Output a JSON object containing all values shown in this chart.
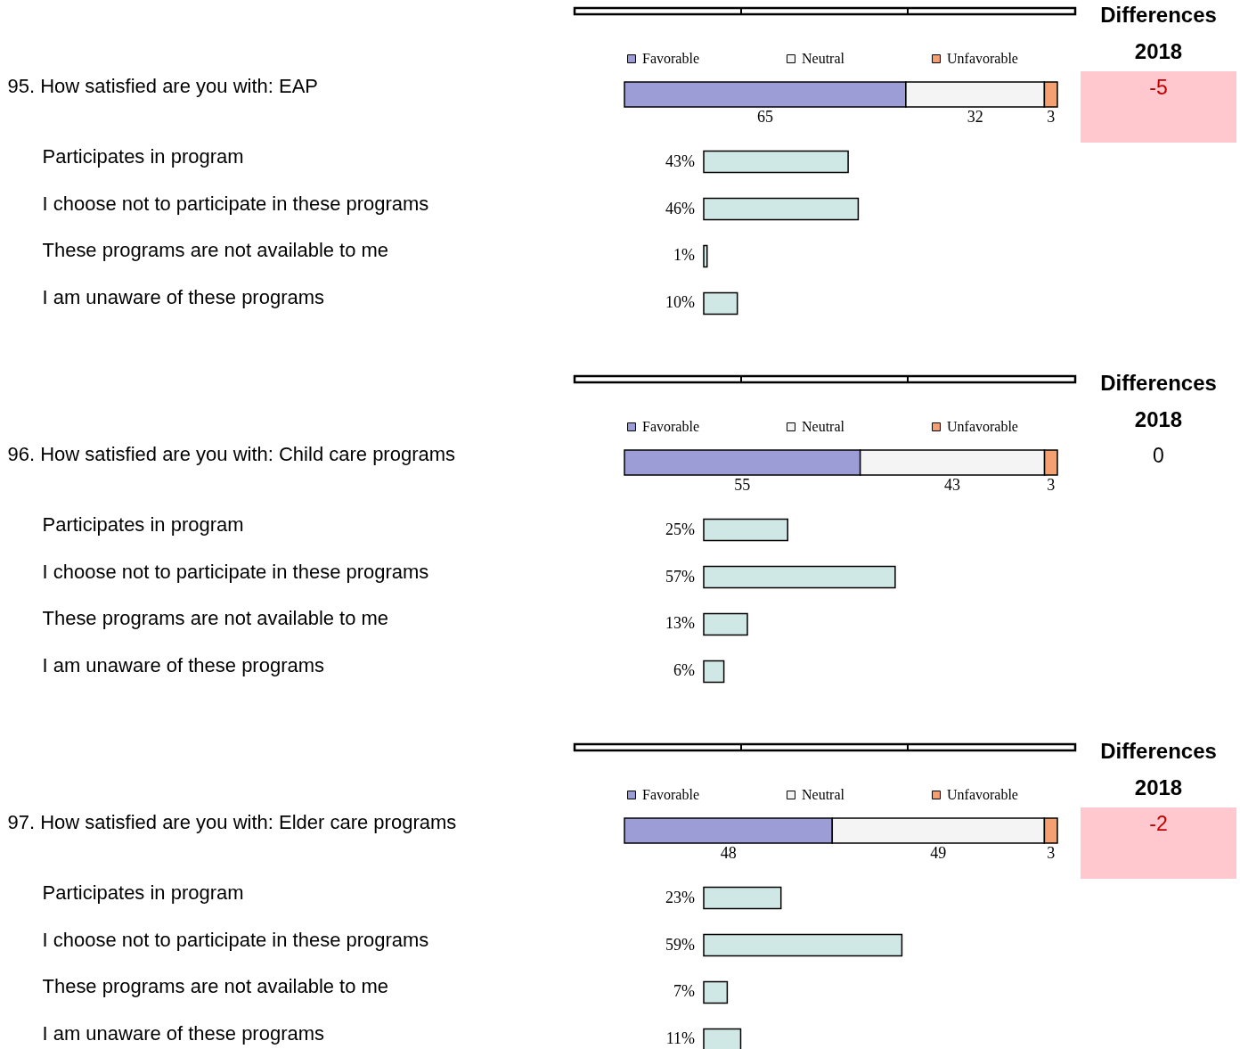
{
  "chart_data": [
    {
      "type": "bar",
      "stacked": true,
      "orientation": "horizontal",
      "legend": "top",
      "data_labels": true,
      "categories": [
        "95. How satisfied are you with: EAP"
      ],
      "series": [
        {
          "name": "Favorable",
          "color": "#9c9cd6",
          "values": [
            65
          ]
        },
        {
          "name": "Neutral",
          "color": "#f4f4f4",
          "values": [
            32
          ]
        },
        {
          "name": "Unfavorable",
          "color": "#f4a070",
          "values": [
            3
          ]
        }
      ]
    },
    {
      "type": "bar",
      "orientation": "horizontal",
      "color": "#cfe8e6",
      "categories": [
        "Participates in program",
        "I choose not to participate in these programs",
        "These programs are not available to me",
        "I am unaware of these programs"
      ],
      "values": [
        43,
        46,
        1,
        10
      ],
      "value_labels": [
        "43%",
        "46%",
        "1%",
        "10%"
      ]
    },
    {
      "type": "other",
      "title": "Differences",
      "subtitle": "2018",
      "annotations": [
        "-5"
      ],
      "color": "#ffc7ce"
    },
    {
      "type": "bar",
      "stacked": true,
      "orientation": "horizontal",
      "legend": "top",
      "data_labels": true,
      "categories": [
        "96. How satisfied are you with: Child care programs"
      ],
      "series": [
        {
          "name": "Favorable",
          "color": "#9c9cd6",
          "values": [
            55
          ]
        },
        {
          "name": "Neutral",
          "color": "#f4f4f4",
          "values": [
            43
          ]
        },
        {
          "name": "Unfavorable",
          "color": "#f4a070",
          "values": [
            3
          ]
        }
      ]
    },
    {
      "type": "bar",
      "orientation": "horizontal",
      "color": "#cfe8e6",
      "categories": [
        "Participates in program",
        "I choose not to participate in these programs",
        "These programs are not available to me",
        "I am unaware of these programs"
      ],
      "values": [
        25,
        57,
        13,
        6
      ],
      "value_labels": [
        "25%",
        "57%",
        "13%",
        "6%"
      ]
    },
    {
      "type": "other",
      "title": "Differences",
      "subtitle": "2018",
      "annotations": [
        "0"
      ]
    },
    {
      "type": "bar",
      "stacked": true,
      "orientation": "horizontal",
      "legend": "top",
      "data_labels": true,
      "categories": [
        "97. How satisfied are you with: Elder care programs"
      ],
      "series": [
        {
          "name": "Favorable",
          "color": "#9c9cd6",
          "values": [
            48
          ]
        },
        {
          "name": "Neutral",
          "color": "#f4f4f4",
          "values": [
            49
          ]
        },
        {
          "name": "Unfavorable",
          "color": "#f4a070",
          "values": [
            3
          ]
        }
      ]
    },
    {
      "type": "bar",
      "orientation": "horizontal",
      "color": "#cfe8e6",
      "categories": [
        "Participates in program",
        "I choose not to participate in these programs",
        "These programs are not available to me",
        "I am unaware of these programs"
      ],
      "values": [
        23,
        59,
        7,
        11
      ],
      "value_labels": [
        "23%",
        "59%",
        "7%",
        "11%"
      ]
    },
    {
      "type": "other",
      "title": "Differences",
      "subtitle": "2018",
      "annotations": [
        "-2"
      ],
      "color": "#ffc7ce"
    }
  ]
}
